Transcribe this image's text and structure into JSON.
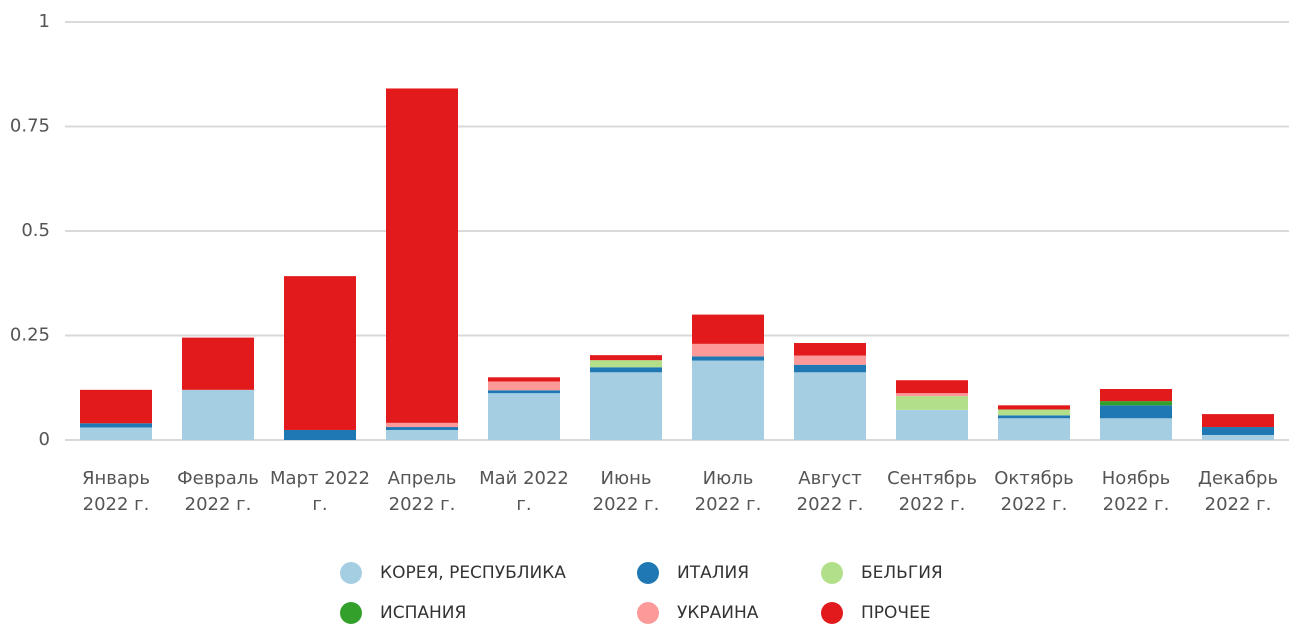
{
  "chart_data": {
    "type": "stacked_bar",
    "categories": [
      "Январь 2022 г.",
      "Февраль 2022 г.",
      "Март 2022 г.",
      "Апрель 2022 г.",
      "Май 2022 г.",
      "Июнь 2022 г.",
      "Июль 2022 г.",
      "Август 2022 г.",
      "Сентябрь 2022 г.",
      "Октябрь 2022 г.",
      "Ноябрь 2022 г.",
      "Декабрь 2022 г."
    ],
    "series": [
      {
        "name": "КОРЕЯ, РЕСПУБЛИКА",
        "color": "#a6cee3",
        "values": [
          0.03,
          0.12,
          0,
          0.024,
          0.112,
          0.162,
          0.19,
          0.162,
          0.072,
          0.052,
          0.052,
          0.012
        ]
      },
      {
        "name": "ИТАЛИЯ",
        "color": "#1f78b4",
        "values": [
          0.01,
          0,
          0.024,
          0.007,
          0.007,
          0.012,
          0.01,
          0.018,
          0,
          0.007,
          0.031,
          0.019
        ]
      },
      {
        "name": "БЕЛЬГИЯ",
        "color": "#b2df8a",
        "values": [
          0,
          0,
          0,
          0,
          0,
          0.017,
          0,
          0,
          0.033,
          0.014,
          0,
          0
        ]
      },
      {
        "name": "ИСПАНИЯ",
        "color": "#33a02c",
        "values": [
          0,
          0,
          0,
          0,
          0,
          0,
          0,
          0,
          0,
          0,
          0.01,
          0
        ]
      },
      {
        "name": "УКРАИНА",
        "color": "#fb9a99",
        "values": [
          0,
          0,
          0,
          0.01,
          0.021,
          0,
          0.03,
          0.022,
          0.007,
          0,
          0,
          0
        ]
      },
      {
        "name": "ПРОЧЕЕ",
        "color": "#e31a1c",
        "values": [
          0.08,
          0.125,
          0.368,
          0.8,
          0.01,
          0.012,
          0.07,
          0.03,
          0.031,
          0.01,
          0.029,
          0.031
        ]
      }
    ],
    "ylim": [
      0,
      1
    ],
    "yticks": [
      0,
      0.25,
      0.5,
      0.75,
      1
    ],
    "grid": true
  }
}
